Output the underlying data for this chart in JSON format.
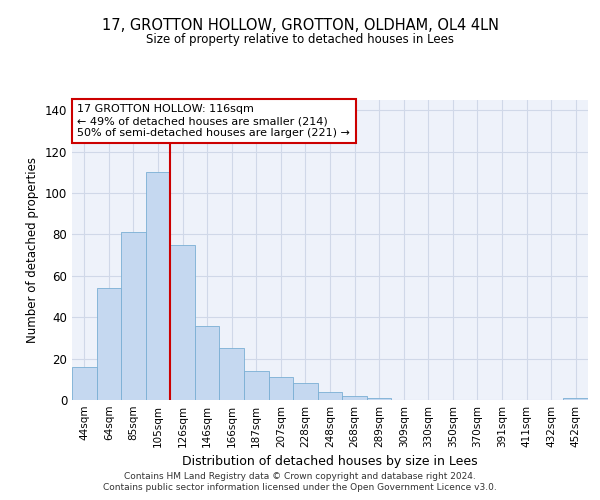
{
  "title1": "17, GROTTON HOLLOW, GROTTON, OLDHAM, OL4 4LN",
  "title2": "Size of property relative to detached houses in Lees",
  "xlabel": "Distribution of detached houses by size in Lees",
  "ylabel": "Number of detached properties",
  "annotation_line1": "17 GROTTON HOLLOW: 116sqm",
  "annotation_line2": "← 49% of detached houses are smaller (214)",
  "annotation_line3": "50% of semi-detached houses are larger (221) →",
  "bar_color": "#c5d8f0",
  "bar_edge_color": "#7aafd4",
  "vline_color": "#cc0000",
  "vline_x_index": 4,
  "categories": [
    "44sqm",
    "64sqm",
    "85sqm",
    "105sqm",
    "126sqm",
    "146sqm",
    "166sqm",
    "187sqm",
    "207sqm",
    "228sqm",
    "248sqm",
    "268sqm",
    "289sqm",
    "309sqm",
    "330sqm",
    "350sqm",
    "370sqm",
    "391sqm",
    "411sqm",
    "432sqm",
    "452sqm"
  ],
  "values": [
    16,
    54,
    81,
    110,
    75,
    36,
    25,
    14,
    11,
    8,
    4,
    2,
    1,
    0,
    0,
    0,
    0,
    0,
    0,
    0,
    1
  ],
  "ylim": [
    0,
    145
  ],
  "yticks": [
    0,
    20,
    40,
    60,
    80,
    100,
    120,
    140
  ],
  "grid_color": "#d0d8e8",
  "background_color": "#eef2fa",
  "footer1": "Contains HM Land Registry data © Crown copyright and database right 2024.",
  "footer2": "Contains public sector information licensed under the Open Government Licence v3.0."
}
